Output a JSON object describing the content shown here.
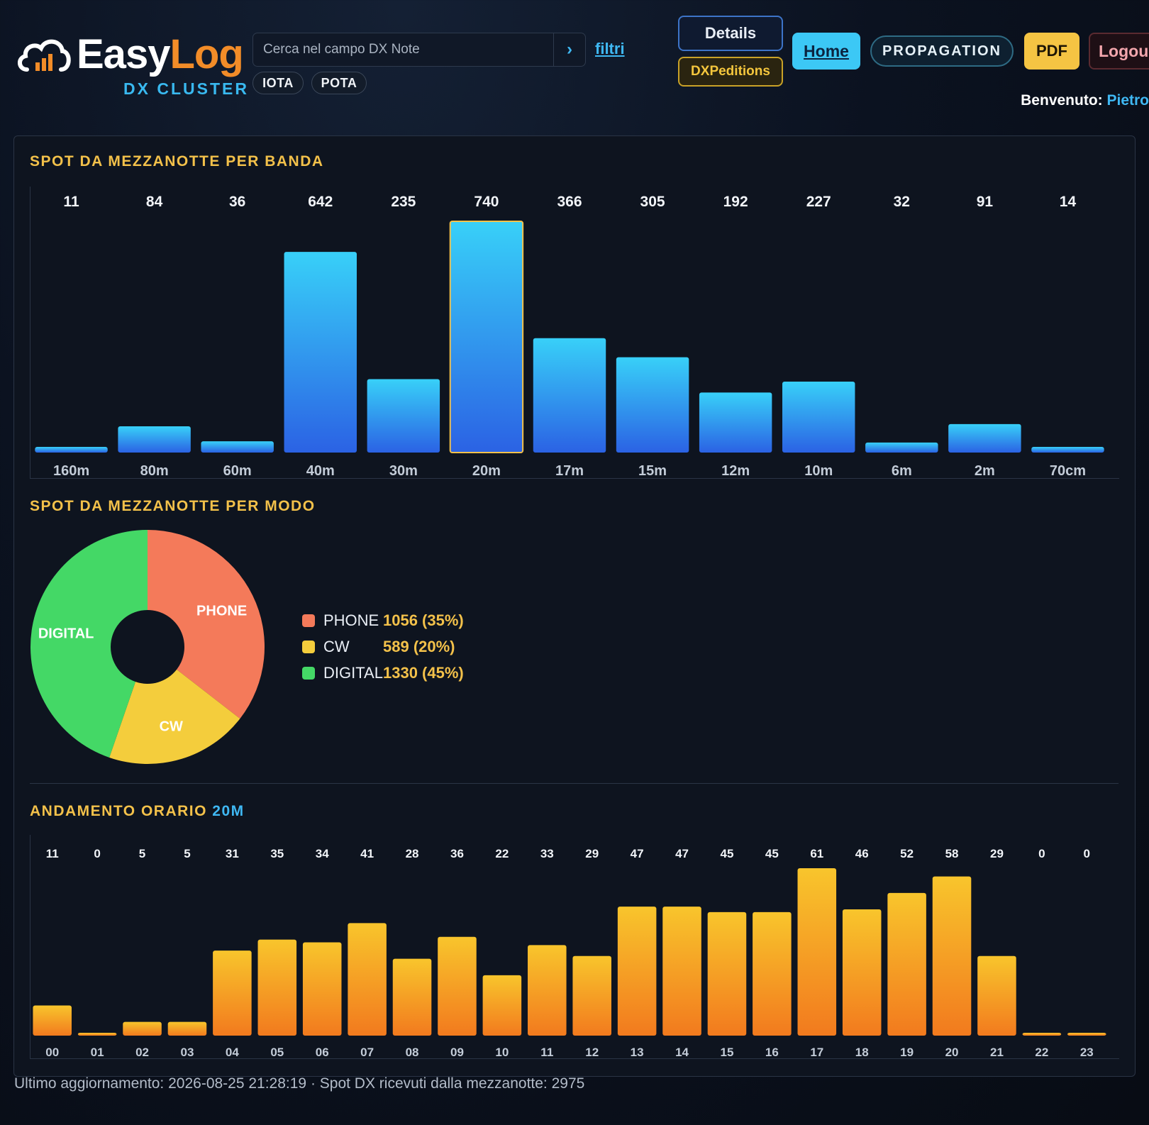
{
  "header": {
    "brand_part1": "Easy",
    "brand_part2": "Log",
    "brand_sub": "DX CLUSTER",
    "search_placeholder": "Cerca nel campo DX Note",
    "search_go": "›",
    "filters_link": "filtri",
    "pills": [
      "IOTA",
      "POTA"
    ],
    "buttons": {
      "details": "Details",
      "dxpeditions": "DXPeditions",
      "home": "Home",
      "propagation": "PROPAGATION",
      "pdf": "PDF",
      "logout": "Logou"
    },
    "welcome_label": "Benvenuto:",
    "welcome_user": "Pietro"
  },
  "sections": {
    "bands_title": "SPOT DA MEZZANOTTE PER BANDA",
    "modes_title": "SPOT DA MEZZANOTTE PER MODO",
    "hourly_title": "ANDAMENTO ORARIO",
    "hourly_title_band": "20M"
  },
  "colors": {
    "accent_gold": "#f3c14a",
    "accent_blue": "#3fb8f3",
    "bar_blue_top": "#38d0f8",
    "bar_blue_bottom": "#2b62e4",
    "bar_gold_top": "#f8c52c",
    "bar_gold_bottom": "#f27a1e",
    "phone": "#f47a5a",
    "cw": "#f4cd3c",
    "digital": "#44d866"
  },
  "chart_data": [
    {
      "type": "bar",
      "title": "SPOT DA MEZZANOTTE PER BANDA",
      "categories": [
        "160m",
        "80m",
        "60m",
        "40m",
        "30m",
        "20m",
        "17m",
        "15m",
        "12m",
        "10m",
        "6m",
        "2m",
        "70cm"
      ],
      "values": [
        11,
        84,
        36,
        642,
        235,
        740,
        366,
        305,
        192,
        227,
        32,
        91,
        14
      ],
      "highlighted_category": "20m",
      "ylim": [
        0,
        740
      ],
      "grid": false
    },
    {
      "type": "pie",
      "title": "SPOT DA MEZZANOTTE PER MODO",
      "categories": [
        "PHONE",
        "CW",
        "DIGITAL"
      ],
      "values": [
        1056,
        589,
        1330
      ],
      "percent_labels": [
        "1056 (35%)",
        "589 (20%)",
        "1330 (45%)"
      ],
      "donut": true,
      "legend_position": "right"
    },
    {
      "type": "bar",
      "title": "ANDAMENTO ORARIO 20M",
      "categories": [
        "00",
        "01",
        "02",
        "03",
        "04",
        "05",
        "06",
        "07",
        "08",
        "09",
        "10",
        "11",
        "12",
        "13",
        "14",
        "15",
        "16",
        "17",
        "18",
        "19",
        "20",
        "21",
        "22",
        "23"
      ],
      "values": [
        11,
        0,
        5,
        5,
        31,
        35,
        34,
        41,
        28,
        36,
        22,
        33,
        29,
        47,
        47,
        45,
        45,
        61,
        46,
        52,
        58,
        29,
        0,
        0
      ],
      "ylim": [
        0,
        61
      ],
      "grid": false
    }
  ],
  "footer": {
    "text": "Ultimo aggiornamento: 2026-08-25 21:28:19 · Spot DX ricevuti dalla mezzanotte: 2975"
  }
}
